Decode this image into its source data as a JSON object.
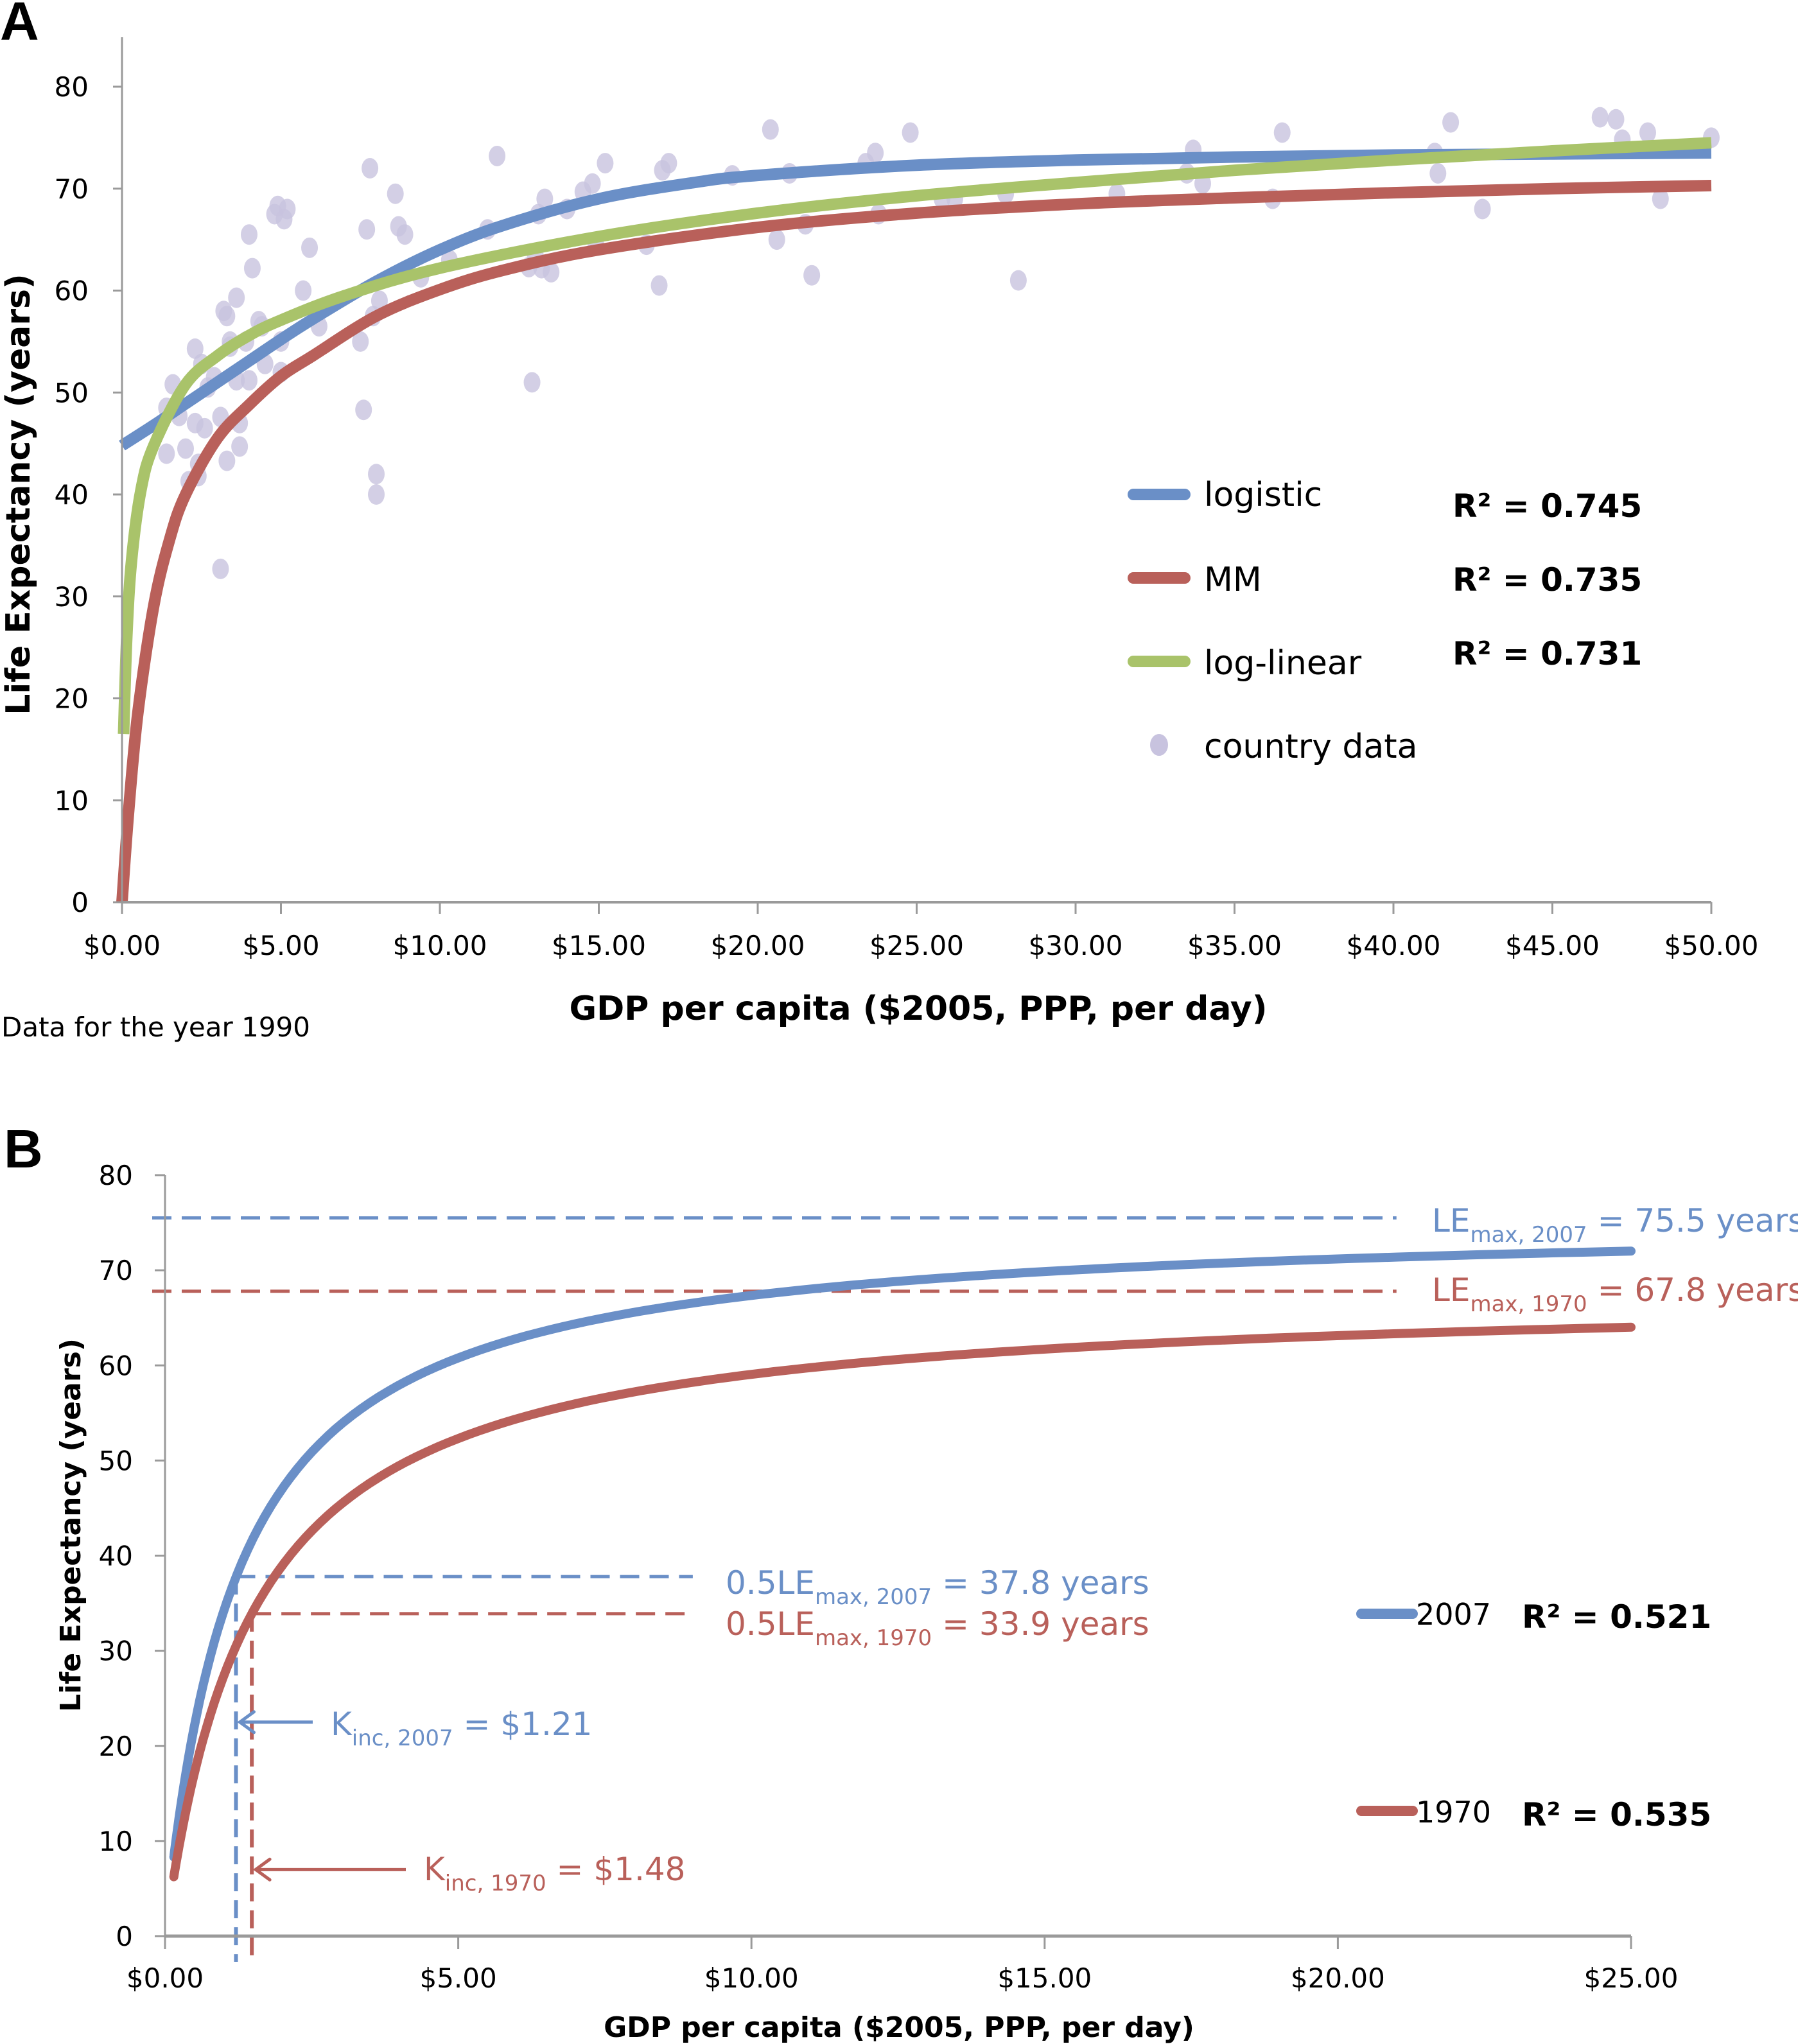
{
  "colors": {
    "logistic": "#6a8fc7",
    "mm": "#b9605a",
    "loglinear": "#a9c36a",
    "country": "#c8c3df",
    "axis": "#9a9a9a",
    "y2007": "#6a8fc7",
    "y1970": "#b9605a"
  },
  "chart_data": [
    {
      "panel": "A",
      "type": "scatter",
      "panel_label": "A",
      "title": "",
      "xlabel": "GDP per capita ($2005, PPP, per day)",
      "ylabel": "Life Expectancy (years)",
      "note": "Data for the year 1990",
      "xlim": [
        0,
        50
      ],
      "ylim": [
        0,
        80
      ],
      "x_ticks": [
        0,
        5,
        10,
        15,
        20,
        25,
        30,
        35,
        40,
        45,
        50
      ],
      "x_tick_labels": [
        "$0.00",
        "$5.00",
        "$10.00",
        "$15.00",
        "$20.00",
        "$25.00",
        "$30.00",
        "$35.00",
        "$40.00",
        "$45.00",
        "$50.00"
      ],
      "y_ticks": [
        0,
        10,
        20,
        30,
        40,
        50,
        60,
        70,
        80
      ],
      "y_tick_labels": [
        "0",
        "10",
        "20",
        "30",
        "40",
        "50",
        "60",
        "70",
        "80"
      ],
      "grid": false,
      "legend_position": "center-right",
      "series": [
        {
          "name": "logistic",
          "kind": "line",
          "color_key": "logistic",
          "r2_label": "R² = 0.745",
          "x": [
            0,
            1,
            2,
            3,
            4,
            5,
            6,
            8,
            10,
            12,
            15,
            18,
            20,
            25,
            30,
            35,
            40,
            45,
            50
          ],
          "y": [
            44.8,
            46.8,
            48.9,
            51.0,
            53.1,
            55.2,
            57.2,
            60.9,
            64.0,
            66.4,
            69.0,
            70.6,
            71.3,
            72.3,
            72.8,
            73.1,
            73.3,
            73.4,
            73.5
          ]
        },
        {
          "name": "MM",
          "kind": "line",
          "color_key": "mm",
          "r2_label": "R² = 0.735",
          "x": [
            0,
            0.2,
            0.5,
            1,
            1.5,
            2,
            3,
            4,
            5,
            6,
            8,
            10,
            12,
            15,
            20,
            25,
            30,
            35,
            40,
            45,
            50
          ],
          "y": [
            0,
            8.6,
            18.6,
            29.1,
            35.6,
            40.0,
            45.5,
            48.8,
            51.6,
            53.6,
            57.5,
            60.1,
            62.0,
            64.0,
            66.2,
            67.6,
            68.5,
            69.1,
            69.6,
            70.0,
            70.3
          ]
        },
        {
          "name": "log-linear",
          "kind": "line",
          "color_key": "loglinear",
          "r2_label": "R² = 0.731",
          "x": [
            0.05,
            0.15,
            0.3,
            0.6,
            1,
            2,
            3,
            4,
            5,
            7,
            10,
            15,
            20,
            25,
            30,
            35,
            40,
            45,
            50
          ],
          "y": [
            16.5,
            26.0,
            33.5,
            40.5,
            44.8,
            50.8,
            53.6,
            55.6,
            57.1,
            59.5,
            62.2,
            65.3,
            67.6,
            69.3,
            70.6,
            71.8,
            72.8,
            73.7,
            74.5
          ]
        },
        {
          "name": "country data",
          "kind": "scatter",
          "color_key": "country",
          "points": [
            [
              1.4,
              48.5
            ],
            [
              1.6,
              50.8
            ],
            [
              1.4,
              44.0
            ],
            [
              1.8,
              47.7
            ],
            [
              2.0,
              44.5
            ],
            [
              2.1,
              41.3
            ],
            [
              2.3,
              54.3
            ],
            [
              2.3,
              47.0
            ],
            [
              2.4,
              43.0
            ],
            [
              2.4,
              41.8
            ],
            [
              2.5,
              52.8
            ],
            [
              2.6,
              46.5
            ],
            [
              2.7,
              50.5
            ],
            [
              2.9,
              51.5
            ],
            [
              3.1,
              47.6
            ],
            [
              3.1,
              32.7
            ],
            [
              3.2,
              58.0
            ],
            [
              3.3,
              57.5
            ],
            [
              3.3,
              43.3
            ],
            [
              3.4,
              55.0
            ],
            [
              3.4,
              54.5
            ],
            [
              3.6,
              59.3
            ],
            [
              3.6,
              51.2
            ],
            [
              3.7,
              47.0
            ],
            [
              3.7,
              44.7
            ],
            [
              3.9,
              55.0
            ],
            [
              4.0,
              65.5
            ],
            [
              4.0,
              51.2
            ],
            [
              4.1,
              62.2
            ],
            [
              4.3,
              57.0
            ],
            [
              4.4,
              56.5
            ],
            [
              4.5,
              52.8
            ],
            [
              4.8,
              67.5
            ],
            [
              4.9,
              68.3
            ],
            [
              5.0,
              52.0
            ],
            [
              5.0,
              55.0
            ],
            [
              5.1,
              67.0
            ],
            [
              5.2,
              68.0
            ],
            [
              5.7,
              60.0
            ],
            [
              5.9,
              64.2
            ],
            [
              6.2,
              56.5
            ],
            [
              7.5,
              55.0
            ],
            [
              7.6,
              48.3
            ],
            [
              7.7,
              66.0
            ],
            [
              7.8,
              72.0
            ],
            [
              7.9,
              57.5
            ],
            [
              8.0,
              40.0
            ],
            [
              8.0,
              42.0
            ],
            [
              8.1,
              59.0
            ],
            [
              8.6,
              69.5
            ],
            [
              8.7,
              66.3
            ],
            [
              8.9,
              65.5
            ],
            [
              9.4,
              61.3
            ],
            [
              10.3,
              63.0
            ],
            [
              11.5,
              66.0
            ],
            [
              11.8,
              73.2
            ],
            [
              12.8,
              62.3
            ],
            [
              12.9,
              51.0
            ],
            [
              13.0,
              63.5
            ],
            [
              13.1,
              67.5
            ],
            [
              13.2,
              62.2
            ],
            [
              13.3,
              69.0
            ],
            [
              13.5,
              61.8
            ],
            [
              14.0,
              68.0
            ],
            [
              14.5,
              69.7
            ],
            [
              14.8,
              70.5
            ],
            [
              14.9,
              64.7
            ],
            [
              15.2,
              72.5
            ],
            [
              16.5,
              64.5
            ],
            [
              16.9,
              60.5
            ],
            [
              17.0,
              71.8
            ],
            [
              17.2,
              72.5
            ],
            [
              19.2,
              71.3
            ],
            [
              20.4,
              75.8
            ],
            [
              20.6,
              65.0
            ],
            [
              21.0,
              71.5
            ],
            [
              21.5,
              66.5
            ],
            [
              21.7,
              61.5
            ],
            [
              23.4,
              72.5
            ],
            [
              23.7,
              73.5
            ],
            [
              23.8,
              67.5
            ],
            [
              24.8,
              75.5
            ],
            [
              25.8,
              69.0
            ],
            [
              26.2,
              69.0
            ],
            [
              27.8,
              69.5
            ],
            [
              28.2,
              61.0
            ],
            [
              31.3,
              69.5
            ],
            [
              33.5,
              71.5
            ],
            [
              33.7,
              73.8
            ],
            [
              34.0,
              70.5
            ],
            [
              36.2,
              69.0
            ],
            [
              36.5,
              75.5
            ],
            [
              41.3,
              73.5
            ],
            [
              41.4,
              71.5
            ],
            [
              41.8,
              76.5
            ],
            [
              42.8,
              68.0
            ],
            [
              46.5,
              77.0
            ],
            [
              47.0,
              76.8
            ],
            [
              47.2,
              74.8
            ],
            [
              48.0,
              75.5
            ],
            [
              48.4,
              69.0
            ],
            [
              50.0,
              75.0
            ]
          ]
        }
      ]
    },
    {
      "panel": "B",
      "type": "line",
      "panel_label": "B",
      "title": "",
      "xlabel": "GDP per capita ($2005, PPP, per day)",
      "ylabel": "Life Expectancy (years)",
      "xlim": [
        0,
        25
      ],
      "ylim": [
        0,
        80
      ],
      "x_ticks": [
        0,
        5,
        10,
        15,
        20,
        25
      ],
      "x_tick_labels": [
        "$0.00",
        "$5.00",
        "$10.00",
        "$15.00",
        "$20.00",
        "$25.00"
      ],
      "y_ticks": [
        0,
        10,
        20,
        30,
        40,
        50,
        60,
        70,
        80
      ],
      "y_tick_labels": [
        "0",
        "10",
        "20",
        "30",
        "40",
        "50",
        "60",
        "70",
        "80"
      ],
      "grid": false,
      "legend_position": "center-right",
      "series": [
        {
          "name": "2007",
          "color_key": "y2007",
          "r2_label": "R² = 0.521",
          "model": "MM",
          "le_max": 75.5,
          "k_inc": 1.21,
          "x_range": [
            0.15,
            25
          ]
        },
        {
          "name": "1970",
          "color_key": "y1970",
          "r2_label": "R² = 0.535",
          "model": "MM",
          "le_max": 67.8,
          "k_inc": 1.48,
          "x_range": [
            0.15,
            25
          ]
        }
      ],
      "annotations": [
        {
          "id": "lemax2007",
          "color_key": "y2007",
          "main": "LE",
          "sub": "max, 2007",
          "tail": " = 75.5 years",
          "hline_y": 75.5,
          "hline_x": [
            0,
            21
          ]
        },
        {
          "id": "lemax1970",
          "color_key": "y1970",
          "main": "LE",
          "sub": "max, 1970",
          "tail": " = 67.8 years",
          "hline_y": 67.8,
          "hline_x": [
            0,
            21
          ]
        },
        {
          "id": "half2007",
          "color_key": "y2007",
          "main": "0.5LE",
          "sub": "max, 2007",
          "tail": " = 37.8 years",
          "hline_y": 37.8,
          "hline_x": [
            1.21,
            9.0
          ]
        },
        {
          "id": "half1970",
          "color_key": "y1970",
          "main": "0.5LE",
          "sub": "max, 1970",
          "tail": " = 33.9 years",
          "hline_y": 33.9,
          "hline_x": [
            1.48,
            8.9
          ]
        },
        {
          "id": "kinc2007",
          "color_key": "y2007",
          "main": "K",
          "sub": "inc, 2007",
          "tail": " = $1.21",
          "vline_x": 1.21,
          "arrow_y": 22.5
        },
        {
          "id": "kinc1970",
          "color_key": "y1970",
          "main": "K",
          "sub": "inc, 1970",
          "tail": " = $1.48",
          "vline_x": 1.48,
          "arrow_y": 7
        }
      ]
    }
  ]
}
